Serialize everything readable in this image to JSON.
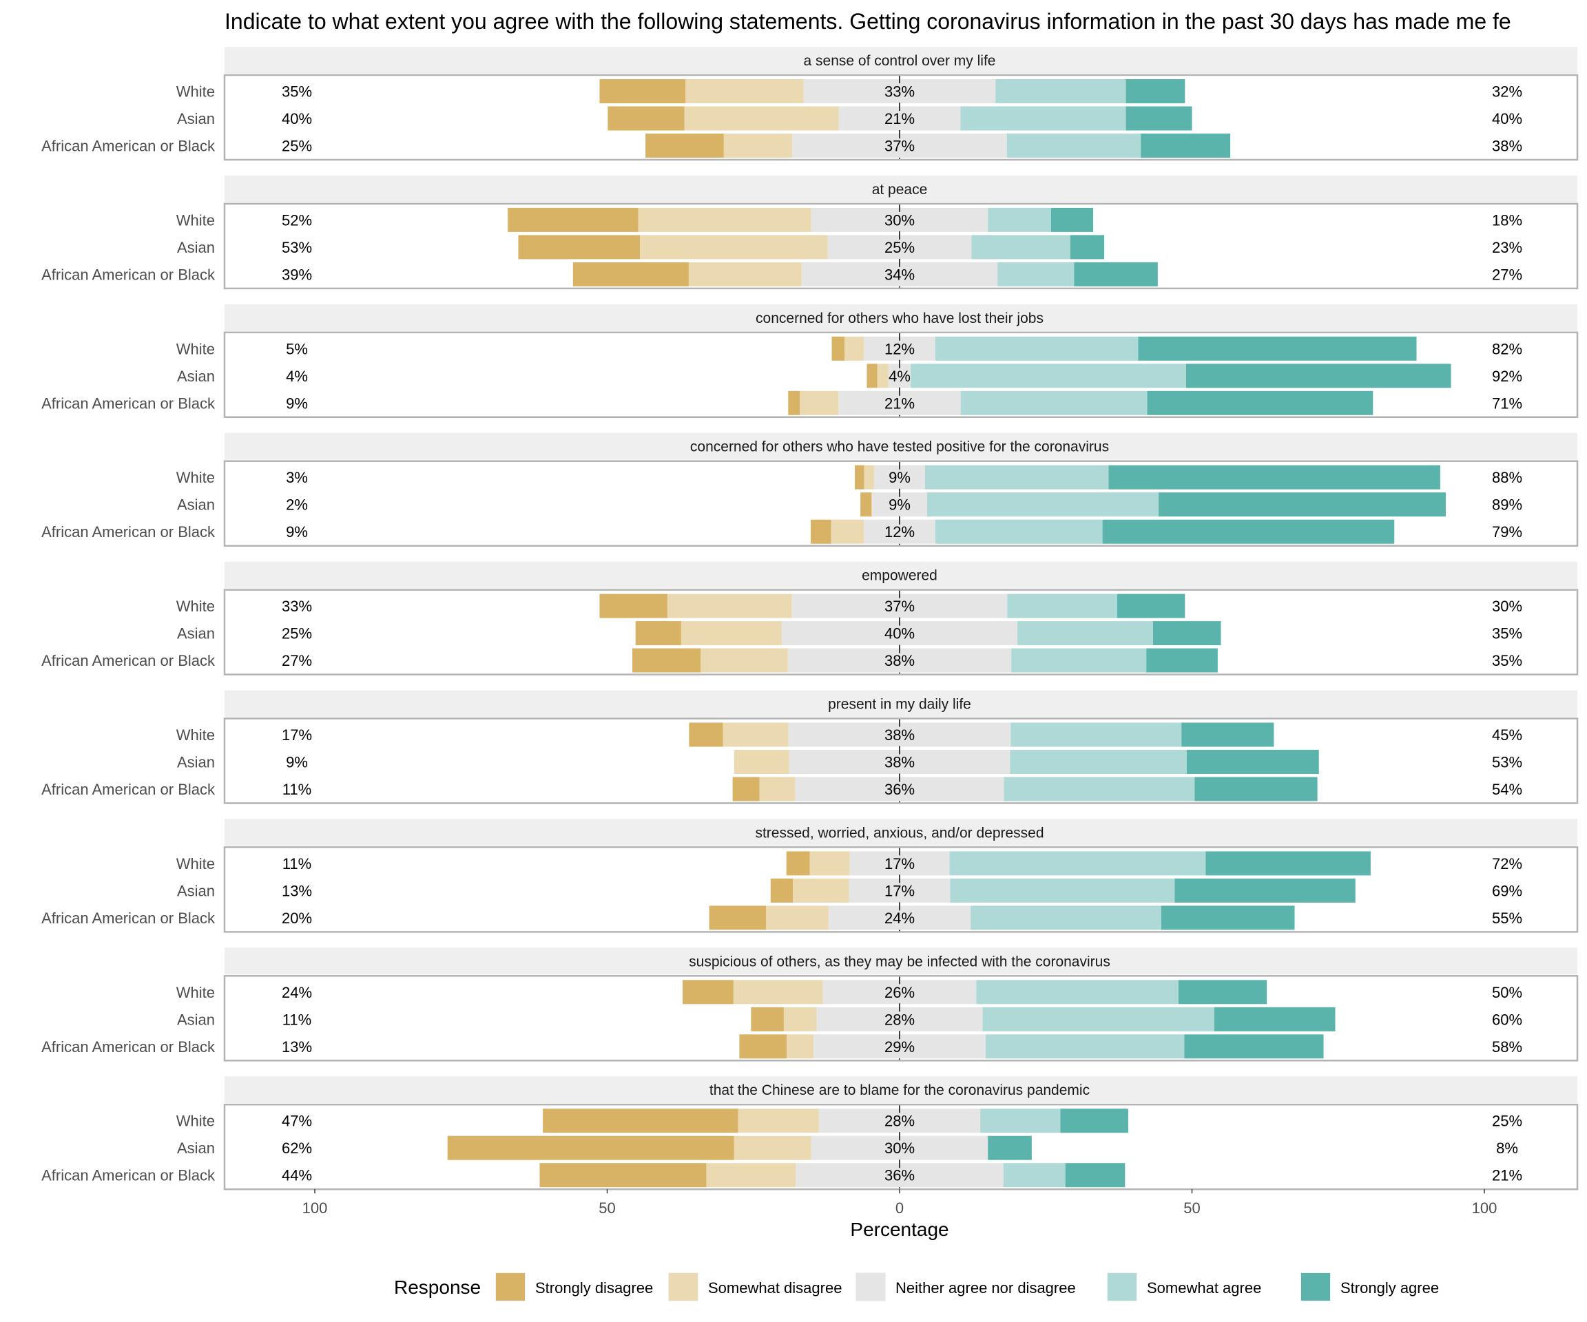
{
  "chart_data": {
    "type": "bar",
    "subtype": "diverging-stacked-likert",
    "title": "Indicate to what extent you agree with the following statements. Getting coronavirus information in the past 30 days has made me fe",
    "xlabel": "Percentage",
    "ylabel": "",
    "xlim": [
      -100,
      100
    ],
    "x_ticks": [
      -100,
      -50,
      0,
      50,
      100
    ],
    "x_tick_labels": [
      "100",
      "50",
      "0",
      "50",
      "100"
    ],
    "grid": true,
    "legend": {
      "title": "Response",
      "position": "bottom",
      "entries": [
        "Strongly disagree",
        "Somewhat disagree",
        "Neither agree nor disagree",
        "Somewhat agree",
        "Strongly agree"
      ]
    },
    "colors": {
      "Strongly disagree": "#d8b365",
      "Somewhat disagree": "#ebd9b2",
      "Neither agree nor disagree": "#e5e5e5",
      "Somewhat agree": "#aed9d6",
      "Strongly agree": "#5ab4ac"
    },
    "groups": [
      "White",
      "Asian",
      "African American or Black"
    ],
    "panels": [
      {
        "statement": "a sense of control over my life",
        "rows": [
          {
            "group": "White",
            "values": [
              14.7,
              20.2,
              32.8,
              22.3,
              10.1
            ],
            "left_label": "35%",
            "center_label": "33%",
            "right_label": "32%"
          },
          {
            "group": "Asian",
            "values": [
              13.1,
              26.4,
              20.8,
              28.3,
              11.3
            ],
            "left_label": "40%",
            "center_label": "21%",
            "right_label": "40%"
          },
          {
            "group": "African American or Black",
            "values": [
              13.4,
              11.7,
              36.7,
              22.9,
              15.3
            ],
            "left_label": "25%",
            "center_label": "37%",
            "right_label": "38%"
          }
        ]
      },
      {
        "statement": "at peace",
        "rows": [
          {
            "group": "White",
            "values": [
              22.3,
              29.6,
              30.2,
              10.8,
              7.2
            ],
            "left_label": "52%",
            "center_label": "30%",
            "right_label": "18%"
          },
          {
            "group": "Asian",
            "values": [
              20.8,
              32.1,
              24.6,
              16.9,
              5.8
            ],
            "left_label": "53%",
            "center_label": "25%",
            "right_label": "23%"
          },
          {
            "group": "African American or Black",
            "values": [
              19.8,
              19.3,
              33.5,
              13.1,
              14.3
            ],
            "left_label": "39%",
            "center_label": "34%",
            "right_label": "27%"
          }
        ]
      },
      {
        "statement": "concerned for others who have lost their jobs",
        "rows": [
          {
            "group": "White",
            "values": [
              2.2,
              3.3,
              12.2,
              34.7,
              47.6
            ],
            "left_label": "5%",
            "center_label": "12%",
            "right_label": "82%"
          },
          {
            "group": "Asian",
            "values": [
              1.8,
              1.9,
              3.8,
              47.1,
              45.3
            ],
            "left_label": "4%",
            "center_label": "4%",
            "right_label": "92%"
          },
          {
            "group": "African American or Black",
            "values": [
              2.0,
              6.6,
              20.9,
              31.9,
              38.6
            ],
            "left_label": "9%",
            "center_label": "21%",
            "right_label": "71%"
          }
        ]
      },
      {
        "statement": "concerned for others who have tested positive for the coronavirus",
        "rows": [
          {
            "group": "White",
            "values": [
              1.6,
              1.7,
              8.7,
              31.4,
              56.7
            ],
            "left_label": "3%",
            "center_label": "9%",
            "right_label": "88%"
          },
          {
            "group": "Asian",
            "values": [
              1.9,
              0.1,
              9.4,
              39.6,
              49.1
            ],
            "left_label": "2%",
            "center_label": "9%",
            "right_label": "89%"
          },
          {
            "group": "African American or Black",
            "values": [
              3.5,
              5.6,
              12.2,
              28.6,
              49.9
            ],
            "left_label": "9%",
            "center_label": "12%",
            "right_label": "79%"
          }
        ]
      },
      {
        "statement": "empowered",
        "rows": [
          {
            "group": "White",
            "values": [
              11.6,
              21.3,
              36.8,
              18.8,
              11.6
            ],
            "left_label": "33%",
            "center_label": "37%",
            "right_label": "30%"
          },
          {
            "group": "Asian",
            "values": [
              7.8,
              17.2,
              40.3,
              23.2,
              11.6
            ],
            "left_label": "25%",
            "center_label": "40%",
            "right_label": "35%"
          },
          {
            "group": "African American or Black",
            "values": [
              11.7,
              14.9,
              38.2,
              23.1,
              12.2
            ],
            "left_label": "27%",
            "center_label": "38%",
            "right_label": "35%"
          }
        ]
      },
      {
        "statement": "present in my daily life",
        "rows": [
          {
            "group": "White",
            "values": [
              5.8,
              11.2,
              38.0,
              29.2,
              15.8
            ],
            "left_label": "17%",
            "center_label": "38%",
            "right_label": "45%"
          },
          {
            "group": "Asian",
            "values": [
              0.0,
              9.4,
              37.8,
              30.2,
              22.6
            ],
            "left_label": "9%",
            "center_label": "38%",
            "right_label": "53%"
          },
          {
            "group": "African American or Black",
            "values": [
              4.6,
              6.1,
              35.7,
              32.6,
              21.0
            ],
            "left_label": "11%",
            "center_label": "36%",
            "right_label": "54%"
          }
        ]
      },
      {
        "statement": "stressed, worried, anxious, and/or depressed",
        "rows": [
          {
            "group": "White",
            "values": [
              4.0,
              6.8,
              17.1,
              43.8,
              28.2
            ],
            "left_label": "11%",
            "center_label": "17%",
            "right_label": "72%"
          },
          {
            "group": "Asian",
            "values": [
              3.8,
              9.6,
              17.3,
              38.4,
              30.9
            ],
            "left_label": "13%",
            "center_label": "17%",
            "right_label": "69%"
          },
          {
            "group": "African American or Black",
            "values": [
              9.7,
              10.7,
              24.3,
              32.6,
              22.8
            ],
            "left_label": "20%",
            "center_label": "24%",
            "right_label": "55%"
          }
        ]
      },
      {
        "statement": "suspicious of others, as they may be infected with the coronavirus",
        "rows": [
          {
            "group": "White",
            "values": [
              8.7,
              15.3,
              26.2,
              34.6,
              15.1
            ],
            "left_label": "24%",
            "center_label": "26%",
            "right_label": "50%"
          },
          {
            "group": "Asian",
            "values": [
              5.6,
              5.6,
              28.4,
              39.6,
              20.7
            ],
            "left_label": "11%",
            "center_label": "28%",
            "right_label": "60%"
          },
          {
            "group": "African American or Black",
            "values": [
              8.1,
              4.6,
              29.4,
              34.0,
              23.8
            ],
            "left_label": "13%",
            "center_label": "29%",
            "right_label": "58%"
          }
        ]
      },
      {
        "statement": "that the Chinese are to blame for the coronavirus pandemic",
        "rows": [
          {
            "group": "White",
            "values": [
              33.4,
              13.8,
              27.6,
              13.7,
              11.6
            ],
            "left_label": "47%",
            "center_label": "28%",
            "right_label": "25%"
          },
          {
            "group": "Asian",
            "values": [
              49.0,
              13.2,
              30.2,
              0.0,
              7.5
            ],
            "left_label": "62%",
            "center_label": "30%",
            "right_label": "8%"
          },
          {
            "group": "African American or Black",
            "values": [
              28.5,
              15.3,
              35.5,
              10.6,
              10.2
            ],
            "left_label": "44%",
            "center_label": "36%",
            "right_label": "21%"
          }
        ]
      }
    ]
  }
}
